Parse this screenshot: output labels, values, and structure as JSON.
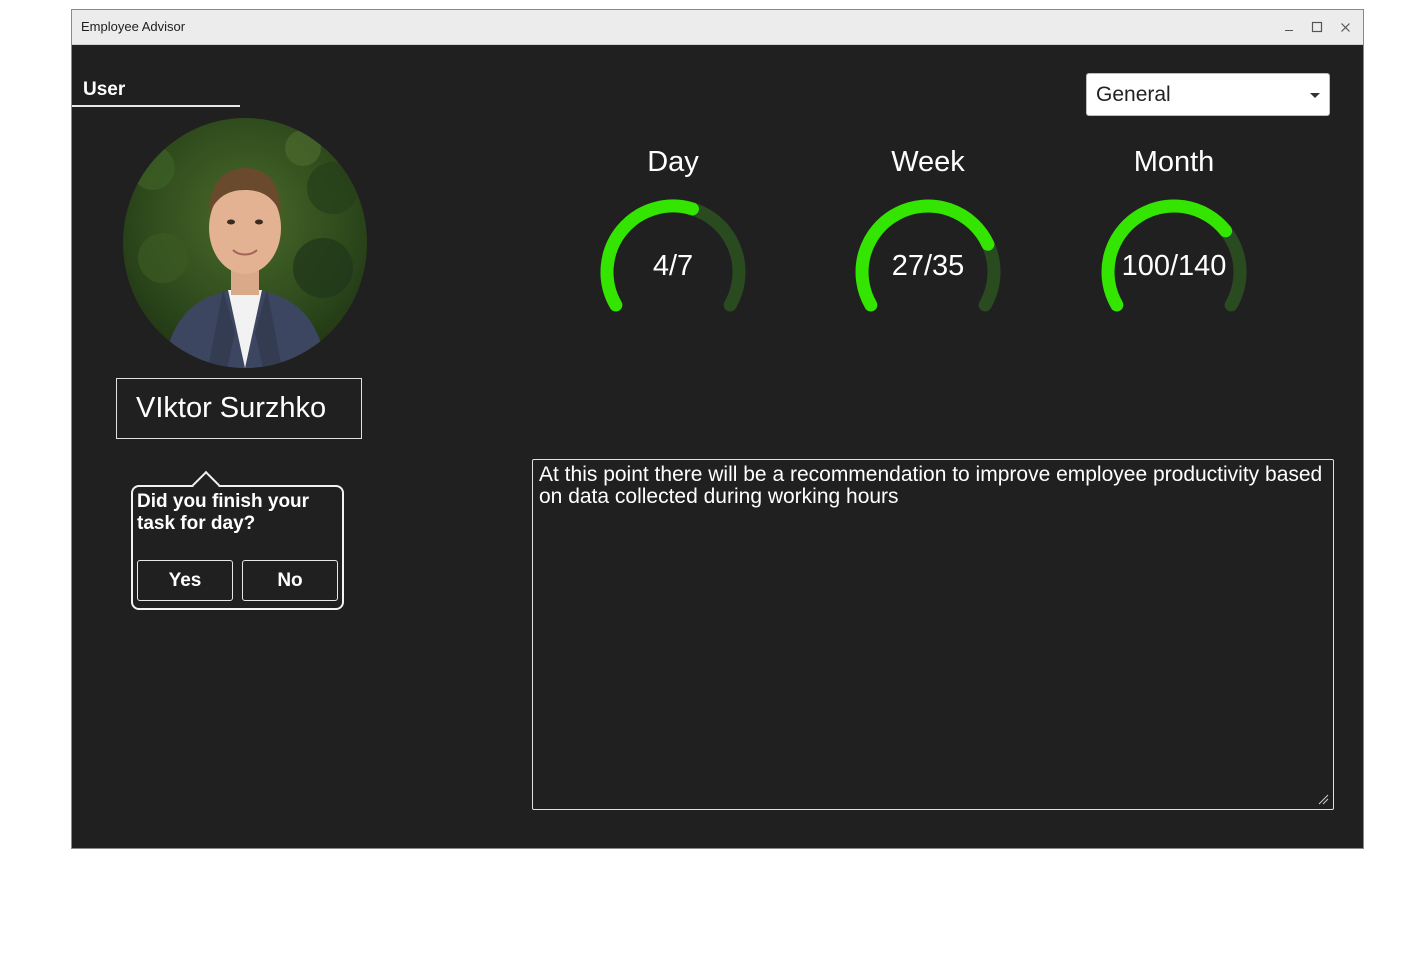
{
  "window": {
    "title": "Employee Advisor",
    "controls": [
      "minimize-icon",
      "maximize-icon",
      "close-icon"
    ]
  },
  "user_tab": {
    "label": "User"
  },
  "profile": {
    "name": "VIktor Surzhko",
    "avatar_icon": "user-photo"
  },
  "task_prompt": {
    "question": "Did you finish your task for day?",
    "yes_label": "Yes",
    "no_label": "No"
  },
  "category_select": {
    "selected": "General"
  },
  "progress": {
    "day": {
      "label": "Day",
      "text": "4/7",
      "done": 4,
      "total": 7
    },
    "week": {
      "label": "Week",
      "text": "27/35",
      "done": 27,
      "total": 35
    },
    "month": {
      "label": "Month",
      "text": "100/140",
      "done": 100,
      "total": 140
    }
  },
  "recommendation": {
    "text": "At this point there will be a recommendation to improve employee productivity based on data collected during working hours"
  },
  "colors": {
    "background": "#202020",
    "gauge_fill": "#33e500",
    "gauge_track": "#2a4a20",
    "titlebar": "#ececec"
  }
}
